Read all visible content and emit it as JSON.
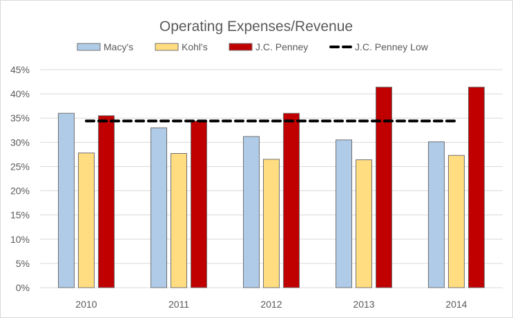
{
  "chart_data": {
    "type": "bar",
    "title": "Operating Expenses/Revenue",
    "xlabel": "",
    "ylabel": "",
    "categories": [
      "2010",
      "2011",
      "2012",
      "2013",
      "2014"
    ],
    "series": [
      {
        "name": "Macy's",
        "kind": "bar",
        "color": "#AFCBE8",
        "values": [
          36.0,
          33.0,
          31.2,
          30.5,
          30.1
        ]
      },
      {
        "name": "Kohl's",
        "kind": "bar",
        "color": "#FFDD80",
        "values": [
          27.8,
          27.7,
          26.5,
          26.4,
          27.3
        ]
      },
      {
        "name": "J.C. Penney",
        "kind": "bar",
        "color": "#C00000",
        "values": [
          35.5,
          34.4,
          36.0,
          41.4,
          41.4
        ]
      },
      {
        "name": "J.C. Penney Low",
        "kind": "line",
        "style": "dashed",
        "color": "#000000",
        "values": [
          34.4,
          34.4,
          34.4,
          34.4,
          34.4
        ]
      }
    ],
    "ylim": [
      0,
      45
    ],
    "y_ticks": [
      0,
      5,
      10,
      15,
      20,
      25,
      30,
      35,
      40,
      45
    ],
    "y_tick_labels": [
      "0%",
      "5%",
      "10%",
      "15%",
      "20%",
      "25%",
      "30%",
      "35%",
      "40%",
      "45%"
    ],
    "grid": true,
    "legend_position": "top",
    "bar_border_color": "#707070",
    "gridline_color": "#d9d9d9"
  }
}
